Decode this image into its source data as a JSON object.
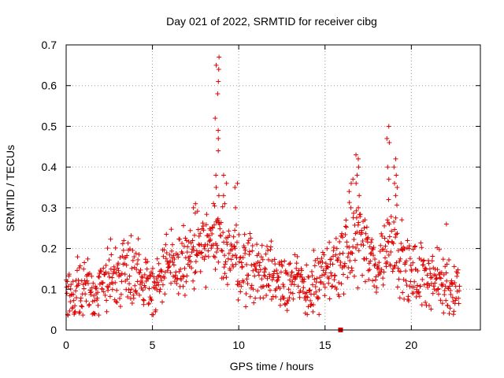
{
  "chart_data": {
    "type": "scatter",
    "title": "Day 021 of 2022, SRMTID for receiver cibg",
    "xlabel": "GPS time / hours",
    "ylabel": "SRMTID / TECUs",
    "xlim": [
      0,
      24
    ],
    "ylim": [
      0,
      0.7
    ],
    "xticks": [
      0,
      5,
      10,
      15,
      20
    ],
    "xtick_labels": [
      "0",
      "5",
      "10",
      "15",
      "20"
    ],
    "yticks": [
      0,
      0.1,
      0.2,
      0.3,
      0.4,
      0.5,
      0.6,
      0.7
    ],
    "ytick_labels": [
      "0",
      "0.1",
      "0.2",
      "0.3",
      "0.4",
      "0.5",
      "0.6",
      "0.7"
    ],
    "grid": true,
    "marker": "plus",
    "color": "#e00000",
    "series": [
      {
        "name": "SRMTID",
        "trend": {
          "x": [
            0,
            0.5,
            1,
            1.5,
            2,
            2.5,
            3,
            3.5,
            4,
            4.5,
            5,
            5.5,
            6,
            6.5,
            7,
            7.5,
            8,
            8.5,
            9,
            9.5,
            10,
            10.5,
            11,
            11.5,
            12,
            12.5,
            13,
            13.5,
            14,
            14.5,
            15,
            15.5,
            16,
            16.5,
            17,
            17.5,
            18,
            18.5,
            19,
            19.5,
            20,
            20.5,
            21,
            21.5,
            22,
            22.5,
            22.8
          ],
          "y": [
            0.1,
            0.09,
            0.1,
            0.09,
            0.11,
            0.13,
            0.14,
            0.16,
            0.15,
            0.12,
            0.11,
            0.13,
            0.15,
            0.16,
            0.17,
            0.19,
            0.2,
            0.21,
            0.22,
            0.19,
            0.17,
            0.16,
            0.15,
            0.14,
            0.14,
            0.13,
            0.12,
            0.11,
            0.1,
            0.11,
            0.13,
            0.15,
            0.18,
            0.2,
            0.24,
            0.18,
            0.15,
            0.2,
            0.24,
            0.16,
            0.13,
            0.13,
            0.14,
            0.12,
            0.11,
            0.11,
            0.11
          ]
        },
        "spread": 0.045,
        "spikes": [
          {
            "x": 8.75,
            "y": [
              0.67,
              0.65,
              0.64,
              0.61,
              0.58,
              0.52,
              0.49,
              0.47,
              0.44,
              0.38,
              0.35,
              0.33
            ]
          },
          {
            "x": 9.2,
            "y": [
              0.38,
              0.36,
              0.33,
              0.31
            ]
          },
          {
            "x": 9.9,
            "y": [
              0.36,
              0.35,
              0.3
            ]
          },
          {
            "x": 16.9,
            "y": [
              0.43,
              0.42,
              0.4,
              0.38,
              0.36,
              0.33,
              0.3
            ]
          },
          {
            "x": 16.5,
            "y": [
              0.37,
              0.36,
              0.34
            ]
          },
          {
            "x": 18.7,
            "y": [
              0.5,
              0.47,
              0.46,
              0.4,
              0.37,
              0.32
            ]
          },
          {
            "x": 19.1,
            "y": [
              0.42,
              0.4,
              0.38,
              0.36,
              0.35,
              0.33
            ]
          },
          {
            "x": 7.4,
            "y": [
              0.31,
              0.3
            ]
          },
          {
            "x": 22.1,
            "y": [
              0.26
            ]
          }
        ],
        "outliers": [
          {
            "x": 15.9,
            "y": 0.0,
            "marker": "square"
          }
        ]
      }
    ]
  }
}
